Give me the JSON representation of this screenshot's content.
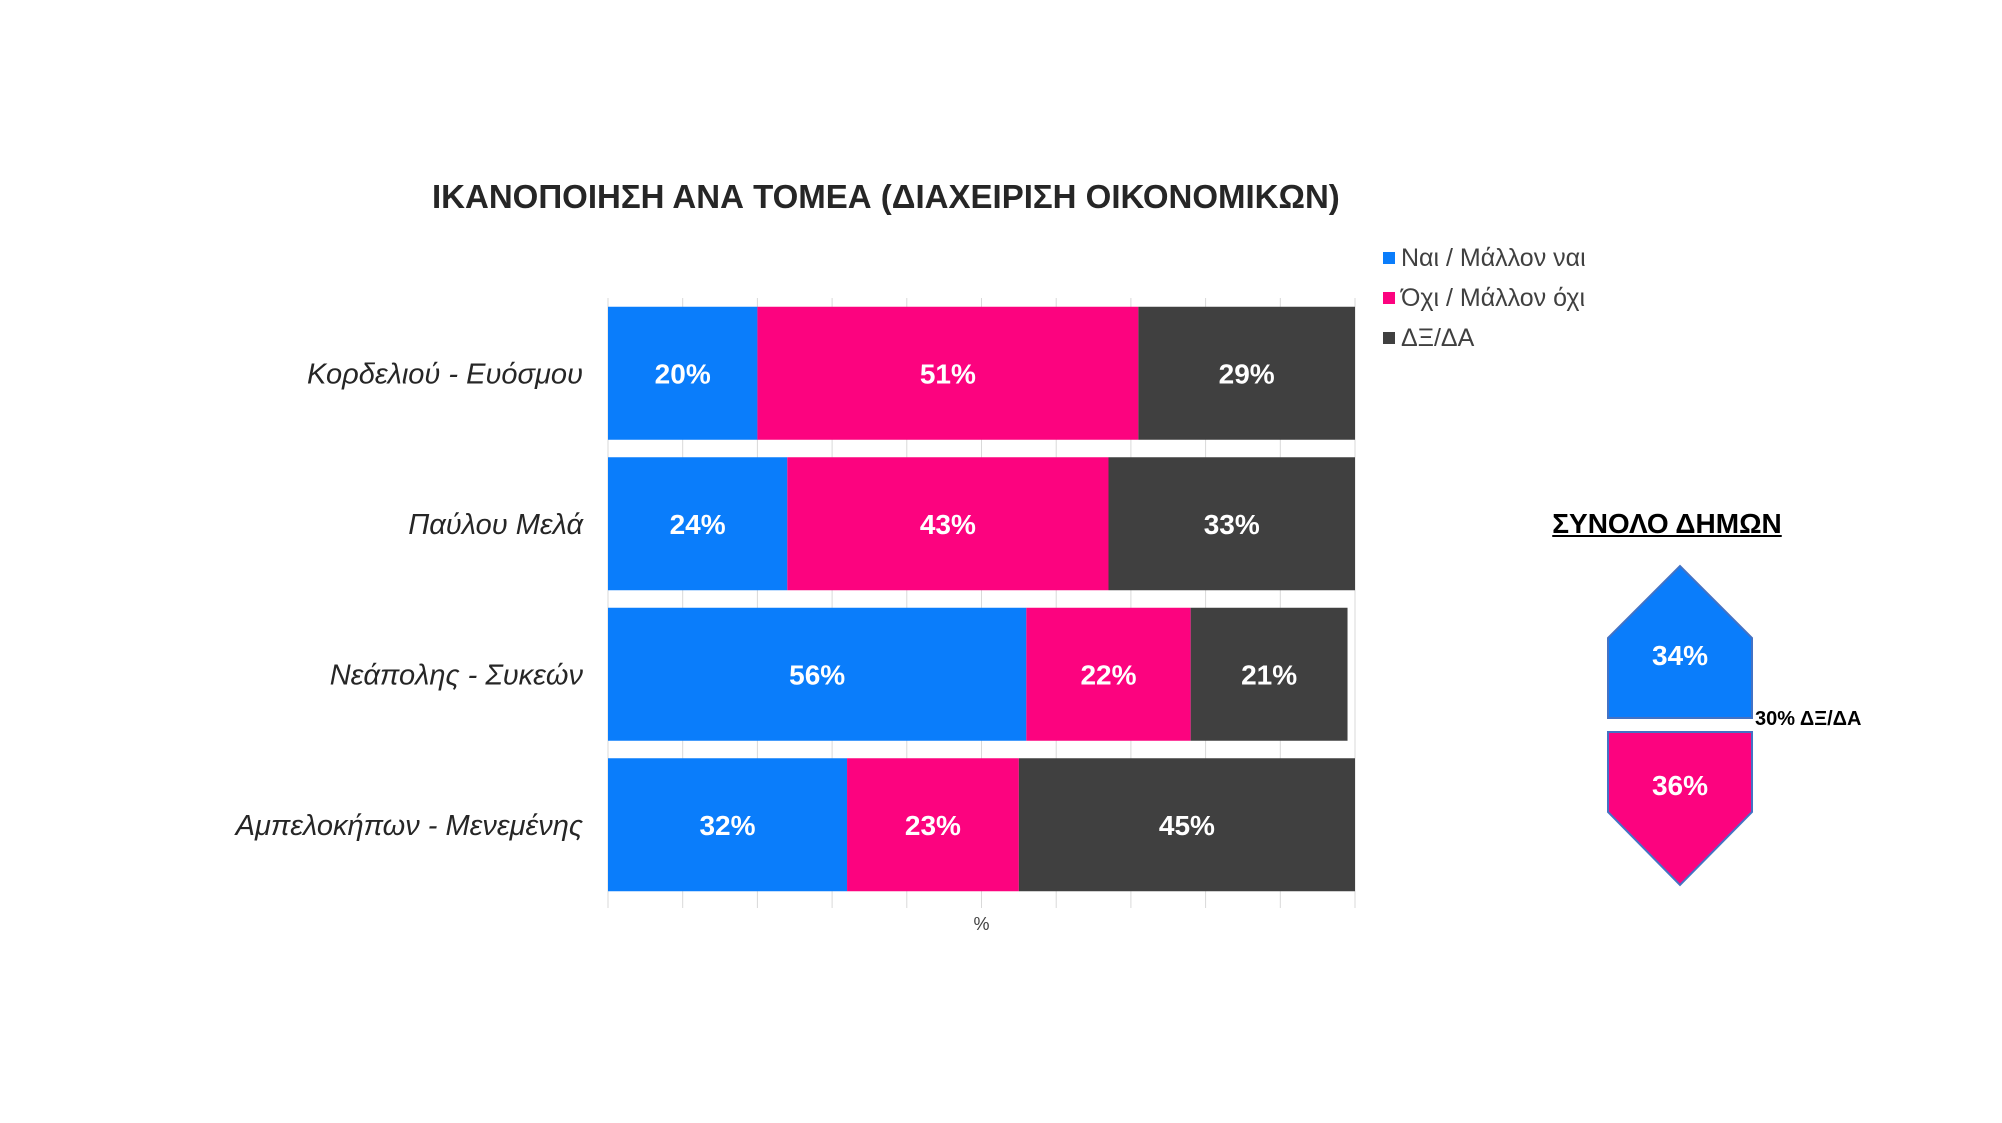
{
  "chart_data": {
    "type": "bar",
    "orientation": "horizontal",
    "stacked": true,
    "title": "ΙΚΑΝΟΠΟΙΗΣΗ ΑΝΑ ΤΟΜΕΑ (ΔΙΑΧΕΙΡΙΣΗ ΟΙΚΟΝΟΜΙΚΩΝ)",
    "xlabel": "%",
    "ylabel": "",
    "xlim": [
      0,
      100
    ],
    "grid": true,
    "legend_position": "top-right",
    "categories": [
      "Κορδελιού - Ευόσμου",
      "Παύλου Μελά",
      "Νεάπολης - Συκεών",
      "Αμπελοκήπων - Μενεμένης"
    ],
    "series": [
      {
        "name": "Ναι / Μάλλον ναι",
        "color": "#0A7DFB",
        "values": [
          20,
          24,
          56,
          32
        ],
        "labels": [
          "20%",
          "24%",
          "56%",
          "32%"
        ]
      },
      {
        "name": "Όχι / Μάλλον όχι",
        "color": "#FC037F",
        "values": [
          51,
          43,
          22,
          23
        ],
        "labels": [
          "51%",
          "43%",
          "22%",
          "23%"
        ]
      },
      {
        "name": "ΔΞ/ΔΑ",
        "color": "#404040",
        "values": [
          29,
          33,
          21,
          45
        ],
        "labels": [
          "29%",
          "33%",
          "21%",
          "45%"
        ]
      }
    ]
  },
  "summary": {
    "title": "ΣΥΝΟΛΟ ΔΗΜΩΝ",
    "yes_value": 34,
    "yes_label": "34%",
    "yes_color": "#0A7DFB",
    "no_value": 36,
    "no_label": "36%",
    "no_color": "#FC037F",
    "dk_note": "30% ΔΞ/ΔΑ",
    "border_color": "#4472C4"
  }
}
